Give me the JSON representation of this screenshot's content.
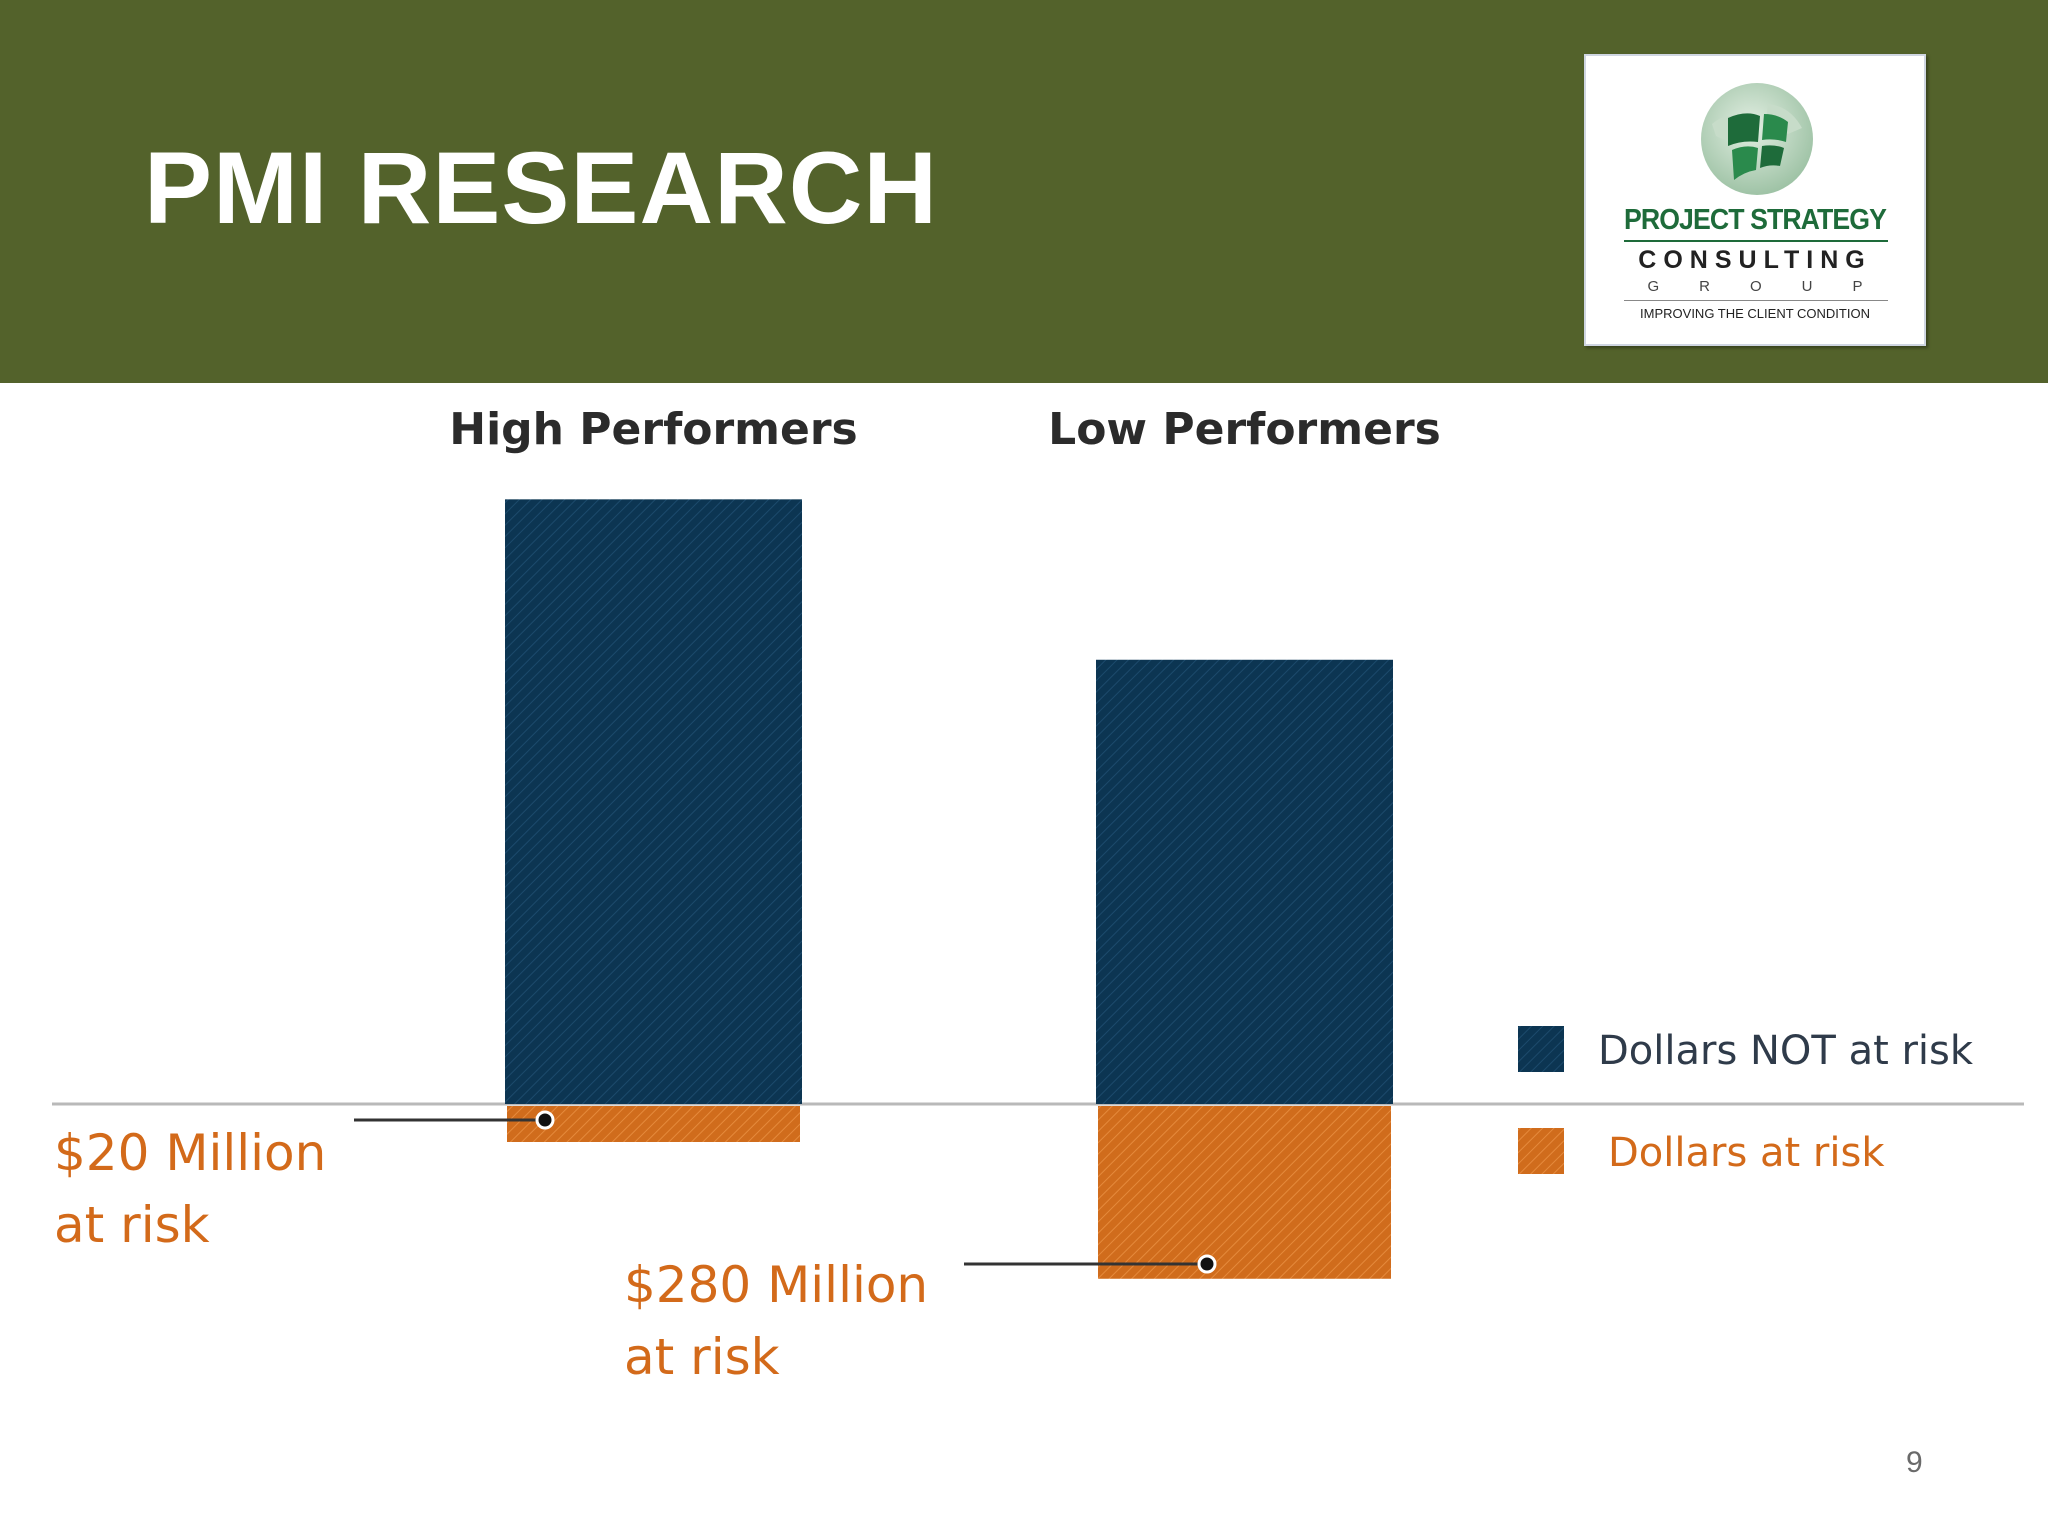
{
  "slide": {
    "title": "PMI RESEARCH",
    "page_number": "9"
  },
  "logo": {
    "line1": "PROJECT STRATEGY",
    "line2": "CONSULTING",
    "line3": "GROUP",
    "line4": "IMPROVING THE CLIENT CONDITION",
    "primary_color": "#1e6b3a"
  },
  "colors": {
    "header": "#53622b",
    "not_at_risk": "#0c3552",
    "at_risk": "#d06c1c",
    "annotation": "#d36a1a"
  },
  "chart_data": {
    "type": "bar",
    "stacked": "diverging",
    "categories": [
      "High Performers",
      "Low Performers"
    ],
    "series": [
      {
        "name": "Dollars NOT at risk",
        "values": [
          980,
          720
        ]
      },
      {
        "name": "Dollars at risk",
        "values": [
          20,
          280
        ]
      }
    ],
    "annotations": [
      {
        "category": "High Performers",
        "line1": "$20 Million",
        "line2": "at risk"
      },
      {
        "category": "Low Performers",
        "line1": "$280 Million",
        "line2": "at risk"
      }
    ],
    "legend_position": "right",
    "grid": false,
    "axis_line": true
  }
}
